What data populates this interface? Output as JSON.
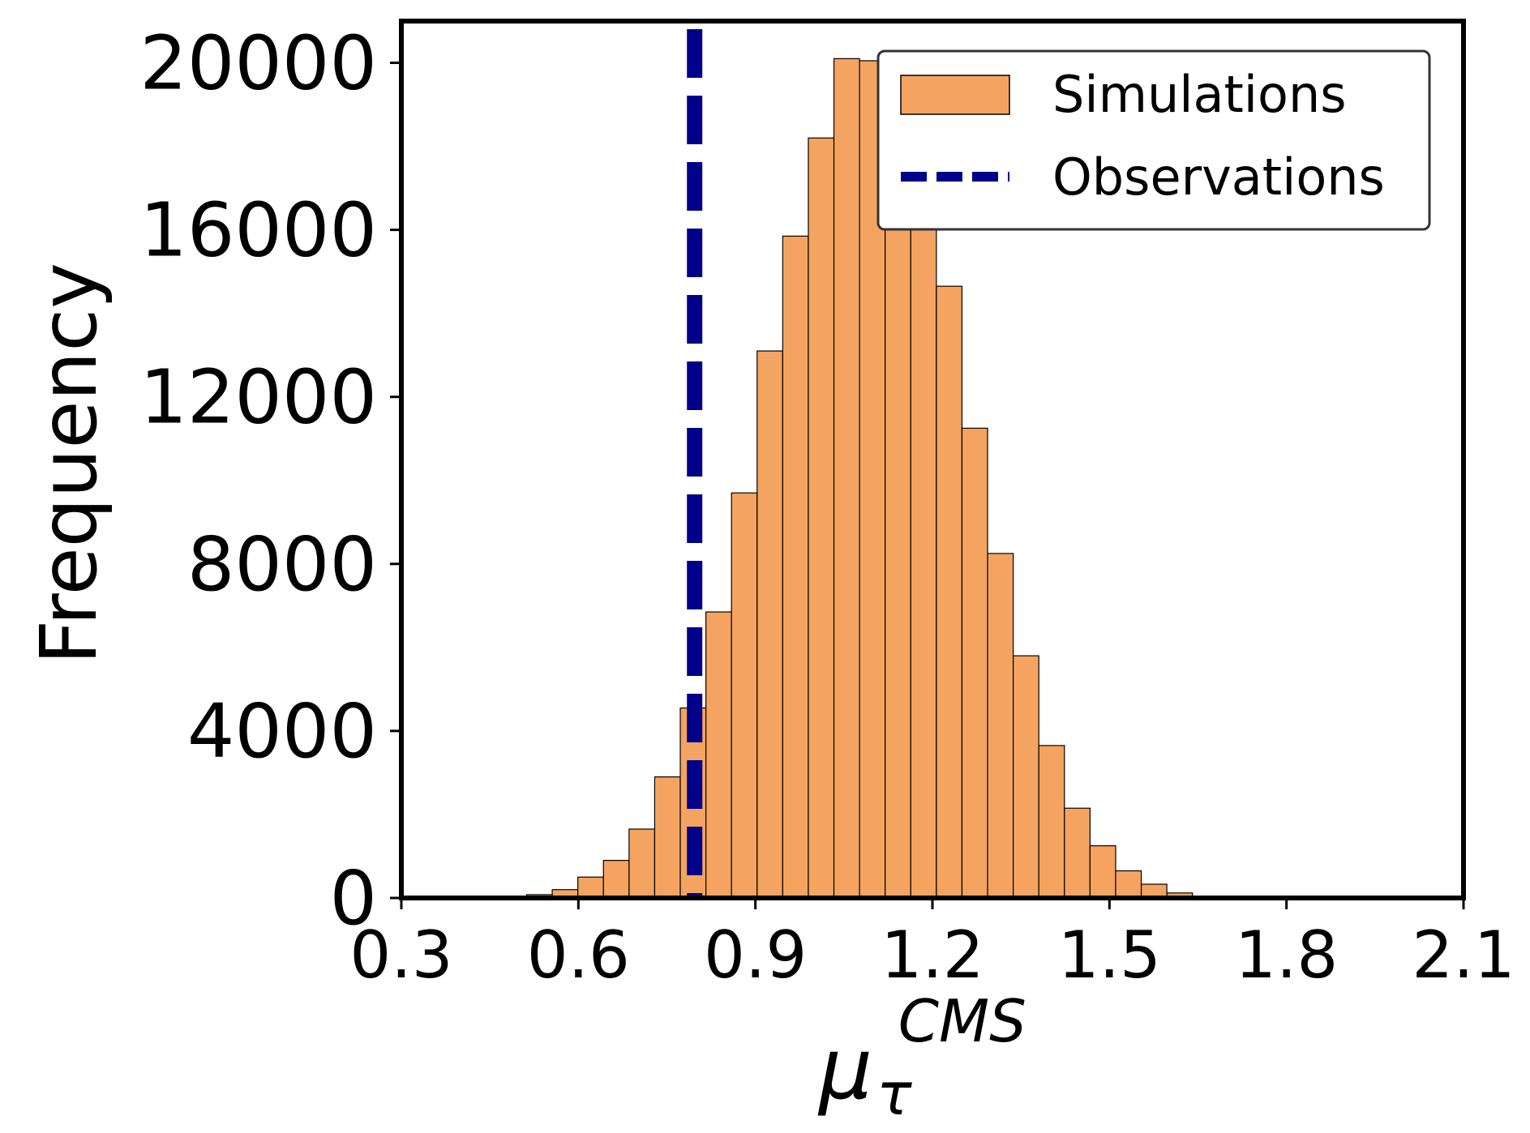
{
  "chart_data": {
    "type": "bar",
    "title": "",
    "xlabel": {
      "base": "μ",
      "subscript": "τ",
      "superscript": "CMS"
    },
    "ylabel": "Frequency",
    "xlim": [
      0.3,
      2.1
    ],
    "ylim": [
      0,
      21000
    ],
    "xticks": [
      "0.3",
      "0.6",
      "0.9",
      "1.2",
      "1.5",
      "1.8",
      "2.1"
    ],
    "yticks": [
      "0",
      "4000",
      "8000",
      "12000",
      "16000",
      "20000"
    ],
    "bins": {
      "start": 0.4255,
      "width": 0.0434,
      "values": [
        10,
        30,
        80,
        200,
        500,
        900,
        1650,
        2900,
        4550,
        6850,
        9700,
        13100,
        15850,
        18200,
        20100,
        20050,
        19300,
        17300,
        14650,
        11250,
        8250,
        5800,
        3650,
        2150,
        1250,
        650,
        330,
        120
      ]
    },
    "bar_color": "#F4A460",
    "bar_edge_color": "#000000",
    "observation": {
      "x": 0.797,
      "color": "#00008B",
      "style": "dashed"
    },
    "legend": {
      "position": "top-right",
      "entries": [
        {
          "label": "Simulations",
          "type": "patch",
          "color": "#F4A460"
        },
        {
          "label": "Observations",
          "type": "line",
          "color": "#00008B"
        }
      ]
    },
    "grid": false
  }
}
